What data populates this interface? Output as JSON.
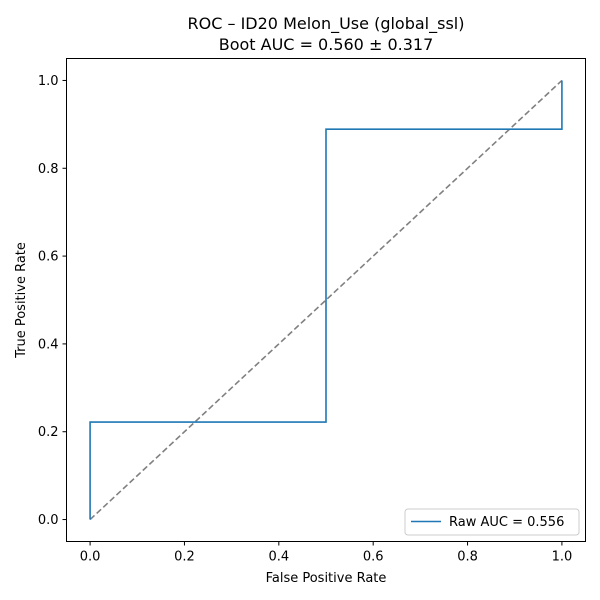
{
  "chart_data": {
    "type": "line",
    "title": "ROC – ID20 Melon_Use (global_ssl)",
    "subtitle": "Boot AUC = 0.560 ± 0.317",
    "xlabel": "False Positive Rate",
    "ylabel": "True Positive Rate",
    "xlim": [
      -0.05,
      1.05
    ],
    "ylim": [
      -0.05,
      1.05
    ],
    "xticks": [
      0.0,
      0.2,
      0.4,
      0.6,
      0.8,
      1.0
    ],
    "yticks": [
      0.0,
      0.2,
      0.4,
      0.6,
      0.8,
      1.0
    ],
    "xtick_labels": [
      "0.0",
      "0.2",
      "0.4",
      "0.6",
      "0.8",
      "1.0"
    ],
    "ytick_labels": [
      "0.0",
      "0.2",
      "0.4",
      "0.6",
      "0.8",
      "1.0"
    ],
    "grid": false,
    "legend_position": "lower-right",
    "series": [
      {
        "name": "Raw AUC = 0.556",
        "color": "#1f77b4",
        "style": "solid",
        "x": [
          0.0,
          0.0,
          0.5,
          0.5,
          1.0,
          1.0
        ],
        "y": [
          0.0,
          0.222,
          0.222,
          0.889,
          0.889,
          1.0
        ]
      },
      {
        "color": "#808080",
        "style": "dashed",
        "x": [
          0.0,
          1.0
        ],
        "y": [
          0.0,
          1.0
        ]
      }
    ]
  }
}
